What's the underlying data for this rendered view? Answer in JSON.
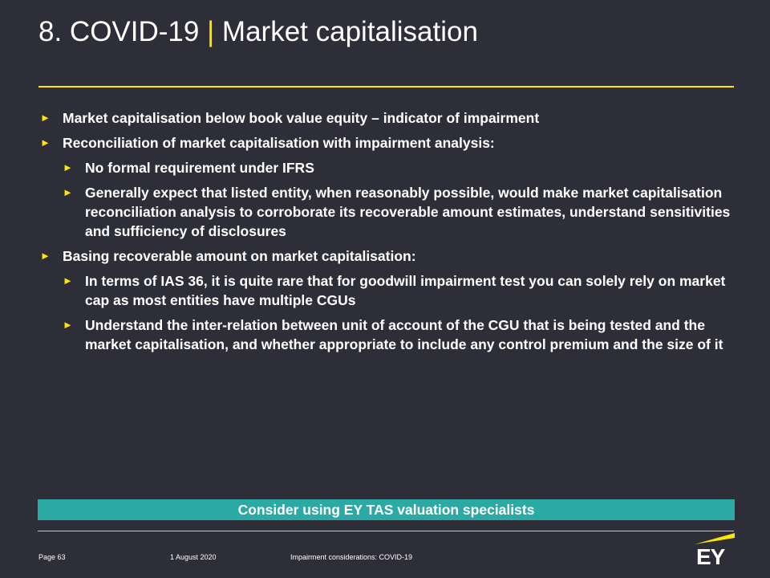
{
  "header": {
    "title_prefix": "8. COVID-19",
    "title_separator": "|",
    "title_main": "Market capitalisation"
  },
  "bullets": [
    {
      "level": 1,
      "text": "Market capitalisation below book value equity – indicator of impairment"
    },
    {
      "level": 1,
      "text": "Reconciliation of market capitalisation with impairment analysis:"
    },
    {
      "level": 2,
      "text": "No formal requirement under IFRS"
    },
    {
      "level": 2,
      "text": "Generally expect that listed entity, when reasonably possible, would make market capitalisation reconciliation analysis to corroborate its recoverable amount estimates, understand sensitivities and sufficiency of disclosures"
    },
    {
      "level": 1,
      "text": "Basing recoverable amount on market capitalisation:"
    },
    {
      "level": 2,
      "text": "In terms of IAS 36, it is quite rare that for goodwill impairment test you can solely rely on market cap as most entities have multiple CGUs"
    },
    {
      "level": 2,
      "text": "Understand the inter-relation between unit of account of the CGU that is being tested and the market capitalisation, and whether appropriate to include any control premium and the size of it"
    }
  ],
  "callout": {
    "text": "Consider using EY TAS valuation specialists"
  },
  "footer": {
    "page": "Page 63",
    "date": "1 August 2020",
    "doc_title": "Impairment considerations: COVID-19",
    "logo_text": "EY"
  },
  "colors": {
    "background": "#2e2e38",
    "accent_yellow": "#ffe600",
    "callout_teal": "#2aa9a5",
    "text": "#ffffff"
  },
  "icons": {
    "bullet": "triangle-right-icon",
    "logo": "ey-logo"
  }
}
